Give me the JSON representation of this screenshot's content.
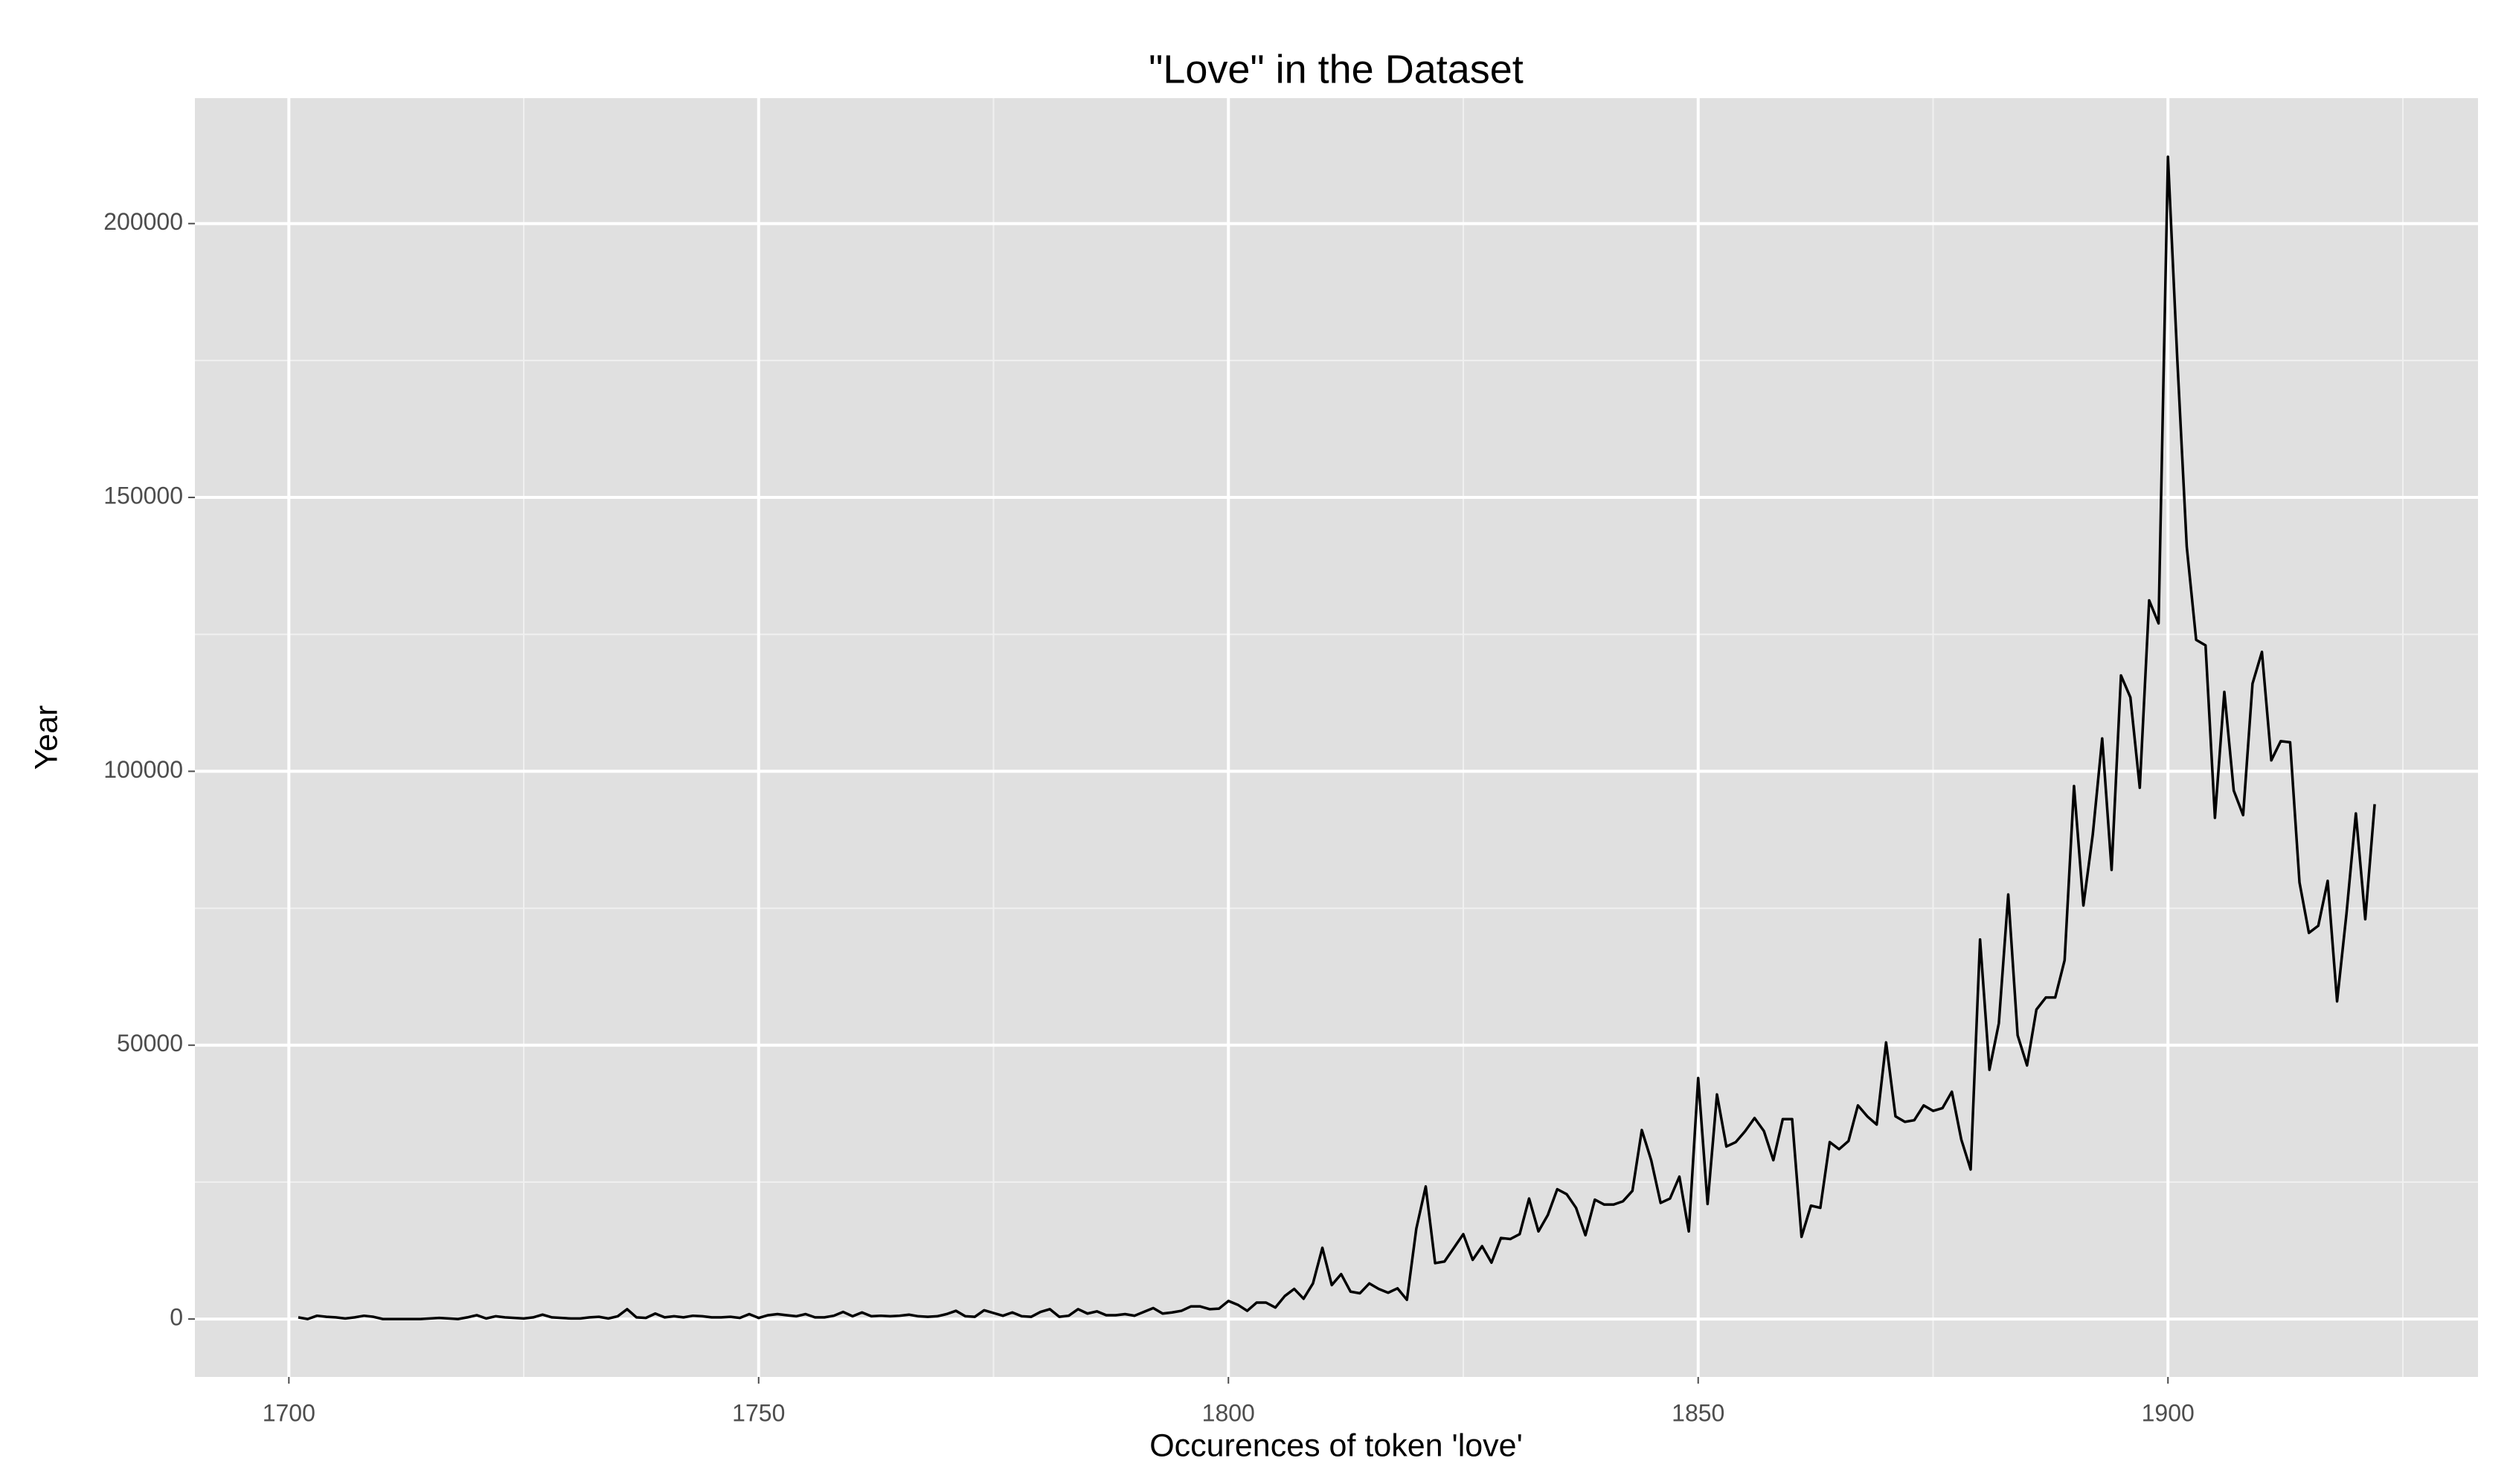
{
  "chart_data": {
    "type": "line",
    "title": "\"Love\" in the Dataset",
    "x_label": "Occurences of token 'love'",
    "y_label": "Year",
    "x": [
      1701,
      1702,
      1703,
      1704,
      1705,
      1706,
      1707,
      1708,
      1709,
      1710,
      1711,
      1712,
      1713,
      1714,
      1715,
      1716,
      1717,
      1718,
      1719,
      1720,
      1721,
      1722,
      1723,
      1724,
      1725,
      1726,
      1727,
      1728,
      1729,
      1730,
      1731,
      1732,
      1733,
      1734,
      1735,
      1736,
      1737,
      1738,
      1739,
      1740,
      1741,
      1742,
      1743,
      1744,
      1745,
      1746,
      1747,
      1748,
      1749,
      1750,
      1751,
      1752,
      1753,
      1754,
      1755,
      1756,
      1757,
      1758,
      1759,
      1760,
      1761,
      1762,
      1763,
      1764,
      1765,
      1766,
      1767,
      1768,
      1769,
      1770,
      1771,
      1772,
      1773,
      1774,
      1775,
      1776,
      1777,
      1778,
      1779,
      1780,
      1781,
      1782,
      1783,
      1784,
      1785,
      1786,
      1787,
      1788,
      1789,
      1790,
      1791,
      1792,
      1793,
      1794,
      1795,
      1796,
      1797,
      1798,
      1799,
      1800,
      1801,
      1802,
      1803,
      1804,
      1805,
      1806,
      1807,
      1808,
      1809,
      1810,
      1811,
      1812,
      1813,
      1814,
      1815,
      1816,
      1817,
      1818,
      1819,
      1820,
      1821,
      1822,
      1823,
      1824,
      1825,
      1826,
      1827,
      1828,
      1829,
      1830,
      1831,
      1832,
      1833,
      1834,
      1835,
      1836,
      1837,
      1838,
      1839,
      1840,
      1841,
      1842,
      1843,
      1844,
      1845,
      1846,
      1847,
      1848,
      1849,
      1850,
      1851,
      1852,
      1853,
      1854,
      1855,
      1856,
      1857,
      1858,
      1859,
      1860,
      1861,
      1862,
      1863,
      1864,
      1865,
      1866,
      1867,
      1868,
      1869,
      1870,
      1871,
      1872,
      1873,
      1874,
      1875,
      1876,
      1877,
      1878,
      1879,
      1880,
      1881,
      1882,
      1883,
      1884,
      1885,
      1886,
      1887,
      1888,
      1889,
      1890,
      1891,
      1892,
      1893,
      1894,
      1895,
      1896,
      1897,
      1898,
      1899,
      1900,
      1901,
      1902,
      1903,
      1904,
      1905,
      1906,
      1907,
      1908,
      1909,
      1910,
      1911,
      1912,
      1913,
      1914,
      1915,
      1916,
      1917,
      1918,
      1919,
      1920,
      1921,
      1922
    ],
    "series": [
      {
        "color": "#000000",
        "values": [
          300,
          0,
          600,
          400,
          300,
          100,
          300,
          600,
          400,
          0,
          0,
          0,
          0,
          0,
          100,
          200,
          100,
          0,
          300,
          700,
          100,
          500,
          300,
          200,
          100,
          300,
          800,
          300,
          200,
          100,
          100,
          300,
          400,
          100,
          500,
          1800,
          300,
          200,
          1000,
          300,
          500,
          300,
          600,
          500,
          300,
          300,
          400,
          200,
          900,
          200,
          700,
          900,
          700,
          500,
          900,
          300,
          300,
          600,
          1300,
          500,
          1200,
          500,
          600,
          500,
          600,
          800,
          500,
          400,
          500,
          900,
          1500,
          500,
          400,
          1600,
          1100,
          600,
          1200,
          500,
          400,
          1300,
          1800,
          400,
          600,
          1800,
          1000,
          1400,
          700,
          700,
          900,
          600,
          1300,
          2000,
          1000,
          1200,
          1500,
          2300,
          2300,
          1800,
          1900,
          3300,
          2600,
          1500,
          3000,
          3000,
          2100,
          4200,
          5500,
          3700,
          6500,
          13000,
          6200,
          8200,
          5000,
          4700,
          6500,
          5500,
          4800,
          5600,
          3500,
          16500,
          24200,
          10200,
          10500,
          13000,
          15500,
          10800,
          13300,
          10300,
          14800,
          14600,
          15500,
          22000,
          16000,
          19000,
          23700,
          22800,
          20300,
          15300,
          21800,
          20900,
          20900,
          21500,
          23400,
          34500,
          29000,
          21200,
          22000,
          26000,
          16000,
          44000,
          21000,
          41000,
          31500,
          32300,
          34300,
          36700,
          34300,
          29000,
          36500,
          36500,
          15000,
          20700,
          20300,
          32300,
          31000,
          32500,
          39000,
          37000,
          35500,
          50500,
          37000,
          36000,
          36300,
          39000,
          38000,
          38500,
          41500,
          32800,
          27300,
          69300,
          45500,
          54000,
          77500,
          51800,
          46300,
          56500,
          58700,
          58700,
          65500,
          97300,
          75500,
          88500,
          106000,
          82000,
          117500,
          113500,
          97000,
          131200,
          127000,
          212200,
          175000,
          141000,
          124000,
          123000,
          91500,
          114500,
          96500,
          92000,
          116000,
          121800,
          102000,
          105500,
          105300,
          79700,
          70500,
          71800,
          80000,
          58000,
          74000,
          92300,
          73000,
          94000
        ]
      }
    ],
    "xlim": [
      1690,
      1933
    ],
    "ylim": [
      -10573,
      222900
    ],
    "xticks": [
      1700,
      1750,
      1800,
      1850,
      1900
    ],
    "yticks": [
      0,
      50000,
      100000,
      150000,
      200000
    ],
    "grid": true
  }
}
